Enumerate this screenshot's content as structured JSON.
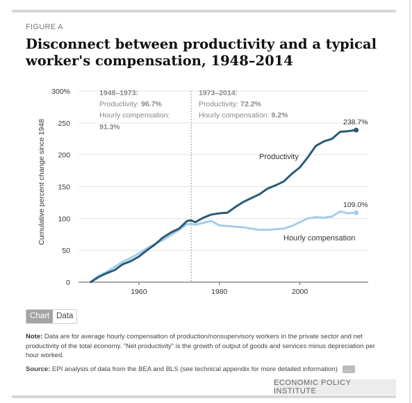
{
  "figure_label": "FIGURE A",
  "title": "Disconnect between productivity and a typical worker's compensation, 1948–2014",
  "toggle": {
    "chart_label": "Chart",
    "data_label": "Data"
  },
  "note": {
    "label": "Note:",
    "text": "Data are for average hourly compensation of production/nonsupervisory workers in the private sector and net productivity of the total economy. \"Net productivity\" is the growth of output of goods and services minus depreciation per hour worked."
  },
  "source": {
    "label": "Source:",
    "text": "EPI analysis of data from the BEA and BLS (see technical appendix for more detailed information)",
    "more_label": "...."
  },
  "brand": "ECONOMIC POLICY INSTITUTE",
  "colors": {
    "productivity": "#2b5b78",
    "compensation": "#a4cde8",
    "divider": "#999999"
  },
  "annotations": {
    "left": {
      "period": "1948–1973:",
      "prod_label": "Productivity: ",
      "prod_value": "96.7%",
      "comp_label": "Hourly compensation:",
      "comp_value": "91.3%"
    },
    "right": {
      "period": "1973–2014:",
      "prod_label": "Productivity: ",
      "prod_value": "72.2%",
      "comp_label": "Hourly compensation: ",
      "comp_value": "9.2%"
    }
  },
  "chart_data": {
    "type": "line",
    "ylabel": "Cumulative percent change since 1948",
    "xlim": [
      1945,
      2017
    ],
    "ylim": [
      0,
      300
    ],
    "yticks": [
      0,
      50,
      100,
      150,
      200,
      250
    ],
    "ytick_labels": [
      "0",
      "50",
      "100",
      "150",
      "200",
      "250"
    ],
    "ytop_label": "300%",
    "xticks": [
      1960,
      1980,
      2000
    ],
    "divider_x": 1973,
    "series": [
      {
        "name": "Productivity",
        "end_label": "238.7%",
        "x": [
          1948,
          1950,
          1952,
          1954,
          1956,
          1958,
          1960,
          1962,
          1964,
          1966,
          1968,
          1970,
          1972,
          1973,
          1974,
          1976,
          1978,
          1980,
          1982,
          1984,
          1986,
          1988,
          1990,
          1992,
          1994,
          1996,
          1998,
          2000,
          2002,
          2004,
          2006,
          2008,
          2010,
          2012,
          2014
        ],
        "y": [
          0,
          8,
          14,
          19,
          28,
          33,
          40,
          50,
          59,
          70,
          78,
          84,
          96,
          97,
          94,
          101,
          106,
          108,
          109,
          118,
          126,
          132,
          138,
          147,
          152,
          158,
          170,
          180,
          196,
          214,
          221,
          225,
          236,
          237,
          238.7
        ]
      },
      {
        "name": "Hourly compensation",
        "end_label": "109.0%",
        "x": [
          1948,
          1950,
          1952,
          1954,
          1956,
          1958,
          1960,
          1962,
          1964,
          1966,
          1968,
          1970,
          1972,
          1973,
          1974,
          1976,
          1978,
          1980,
          1982,
          1984,
          1986,
          1988,
          1990,
          1992,
          1994,
          1996,
          1998,
          2000,
          2002,
          2004,
          2006,
          2008,
          2010,
          2012,
          2014
        ],
        "y": [
          0,
          10,
          16,
          24,
          32,
          38,
          45,
          53,
          60,
          66,
          74,
          82,
          91,
          91.3,
          90,
          93,
          96,
          89,
          88,
          87,
          86,
          84,
          82,
          82,
          83,
          84,
          88,
          94,
          100,
          102,
          101,
          103,
          111,
          108,
          109
        ]
      }
    ]
  }
}
